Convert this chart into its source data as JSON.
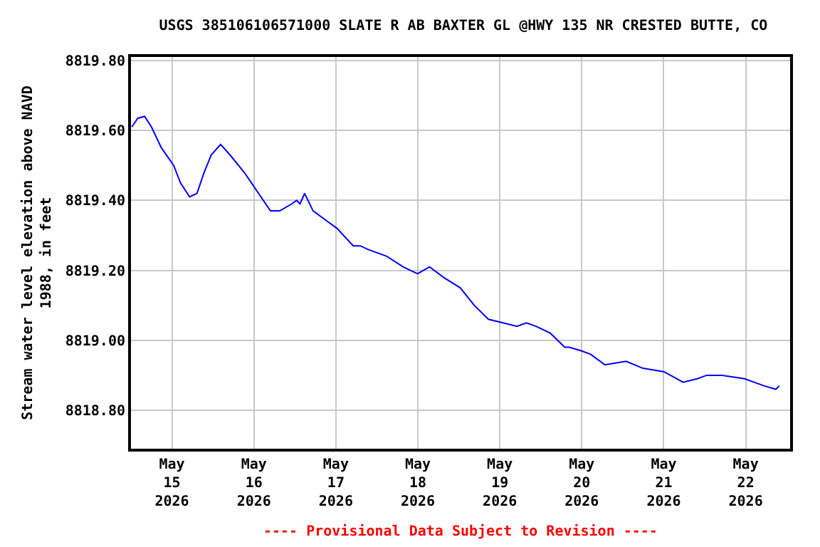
{
  "chart_data": {
    "type": "line",
    "title": "USGS 385106106571000 SLATE R AB BAXTER GL @HWY 135 NR CRESTED BUTTE, CO",
    "ylabel": "Stream water level elevation above NAVD 1988, in feet",
    "annotations": [
      "---- Provisional Data Subject to Revision ----"
    ],
    "x": [
      "2026-05-14T12:15",
      "2026-05-14T14:00",
      "2026-05-14T16:00",
      "2026-05-14T18:00",
      "2026-05-14T20:55",
      "2026-05-15T00:30",
      "2026-05-15T02:30",
      "2026-05-15T05:10",
      "2026-05-15T07:20",
      "2026-05-15T09:25",
      "2026-05-15T11:30",
      "2026-05-15T14:15",
      "2026-05-15T17:00",
      "2026-05-15T21:10",
      "2026-05-16T00:40",
      "2026-05-16T04:50",
      "2026-05-16T07:35",
      "2026-05-16T11:05",
      "2026-05-16T12:30",
      "2026-05-16T13:30",
      "2026-05-16T14:50",
      "2026-05-16T17:20",
      "2026-05-16T21:30",
      "2026-05-17T00:20",
      "2026-05-17T05:05",
      "2026-05-17T07:10",
      "2026-05-17T09:20",
      "2026-05-17T14:55",
      "2026-05-17T19:40",
      "2026-05-17T23:55",
      "2026-05-18T03:25",
      "2026-05-18T07:30",
      "2026-05-18T12:25",
      "2026-05-18T16:30",
      "2026-05-18T20:40",
      "2026-05-19T00:55",
      "2026-05-19T05:00",
      "2026-05-19T07:50",
      "2026-05-19T10:35",
      "2026-05-19T14:50",
      "2026-05-19T19:00",
      "2026-05-19T20:20",
      "2026-05-19T23:50",
      "2026-05-20T02:35",
      "2026-05-20T06:45",
      "2026-05-20T13:00",
      "2026-05-20T17:55",
      "2026-05-21T00:05",
      "2026-05-21T05:40",
      "2026-05-21T09:50",
      "2026-05-21T12:35",
      "2026-05-21T16:50",
      "2026-05-21T23:40",
      "2026-05-22T05:20",
      "2026-05-22T08:50",
      "2026-05-22T09:50"
    ],
    "series": [
      {
        "color": "#0000ff",
        "values": [
          8819.61,
          8819.635,
          8819.64,
          8819.61,
          8819.55,
          8819.5,
          8819.45,
          8819.41,
          8819.42,
          8819.48,
          8819.53,
          8819.56,
          8819.53,
          8819.48,
          8819.43,
          8819.37,
          8819.37,
          8819.39,
          8819.4,
          8819.39,
          8819.42,
          8819.37,
          8819.34,
          8819.32,
          8819.27,
          8819.27,
          8819.26,
          8819.24,
          8819.21,
          8819.19,
          8819.21,
          8819.18,
          8819.15,
          8819.1,
          8819.06,
          8819.05,
          8819.04,
          8819.05,
          8819.04,
          8819.02,
          8818.98,
          8818.98,
          8818.97,
          8818.96,
          8818.93,
          8818.94,
          8818.92,
          8818.91,
          8818.88,
          8818.89,
          8818.9,
          8818.9,
          8818.89,
          8818.87,
          8818.86,
          8818.87
        ]
      }
    ],
    "xlim": [
      "2026-05-14T12:00",
      "2026-05-22T13:00"
    ],
    "xticks": [
      {
        "value": "2026-05-15",
        "label": "May 15 2026"
      },
      {
        "value": "2026-05-16",
        "label": "May 16 2026"
      },
      {
        "value": "2026-05-17",
        "label": "May 17 2026"
      },
      {
        "value": "2026-05-18",
        "label": "May 18 2026"
      },
      {
        "value": "2026-05-19",
        "label": "May 19 2026"
      },
      {
        "value": "2026-05-20",
        "label": "May 20 2026"
      },
      {
        "value": "2026-05-21",
        "label": "May 21 2026"
      },
      {
        "value": "2026-05-22",
        "label": "May 22 2026"
      }
    ],
    "ylim": [
      8818.69,
      8819.81
    ],
    "yticks": [
      {
        "value": 8818.8,
        "label": "8818.80"
      },
      {
        "value": 8819.0,
        "label": "8819.00"
      },
      {
        "value": 8819.2,
        "label": "8819.20"
      },
      {
        "value": 8819.4,
        "label": "8819.40"
      },
      {
        "value": 8819.6,
        "label": "8819.60"
      },
      {
        "value": 8819.8,
        "label": "8819.80"
      }
    ],
    "grid": true,
    "marker": "none",
    "line_style": "solid"
  }
}
